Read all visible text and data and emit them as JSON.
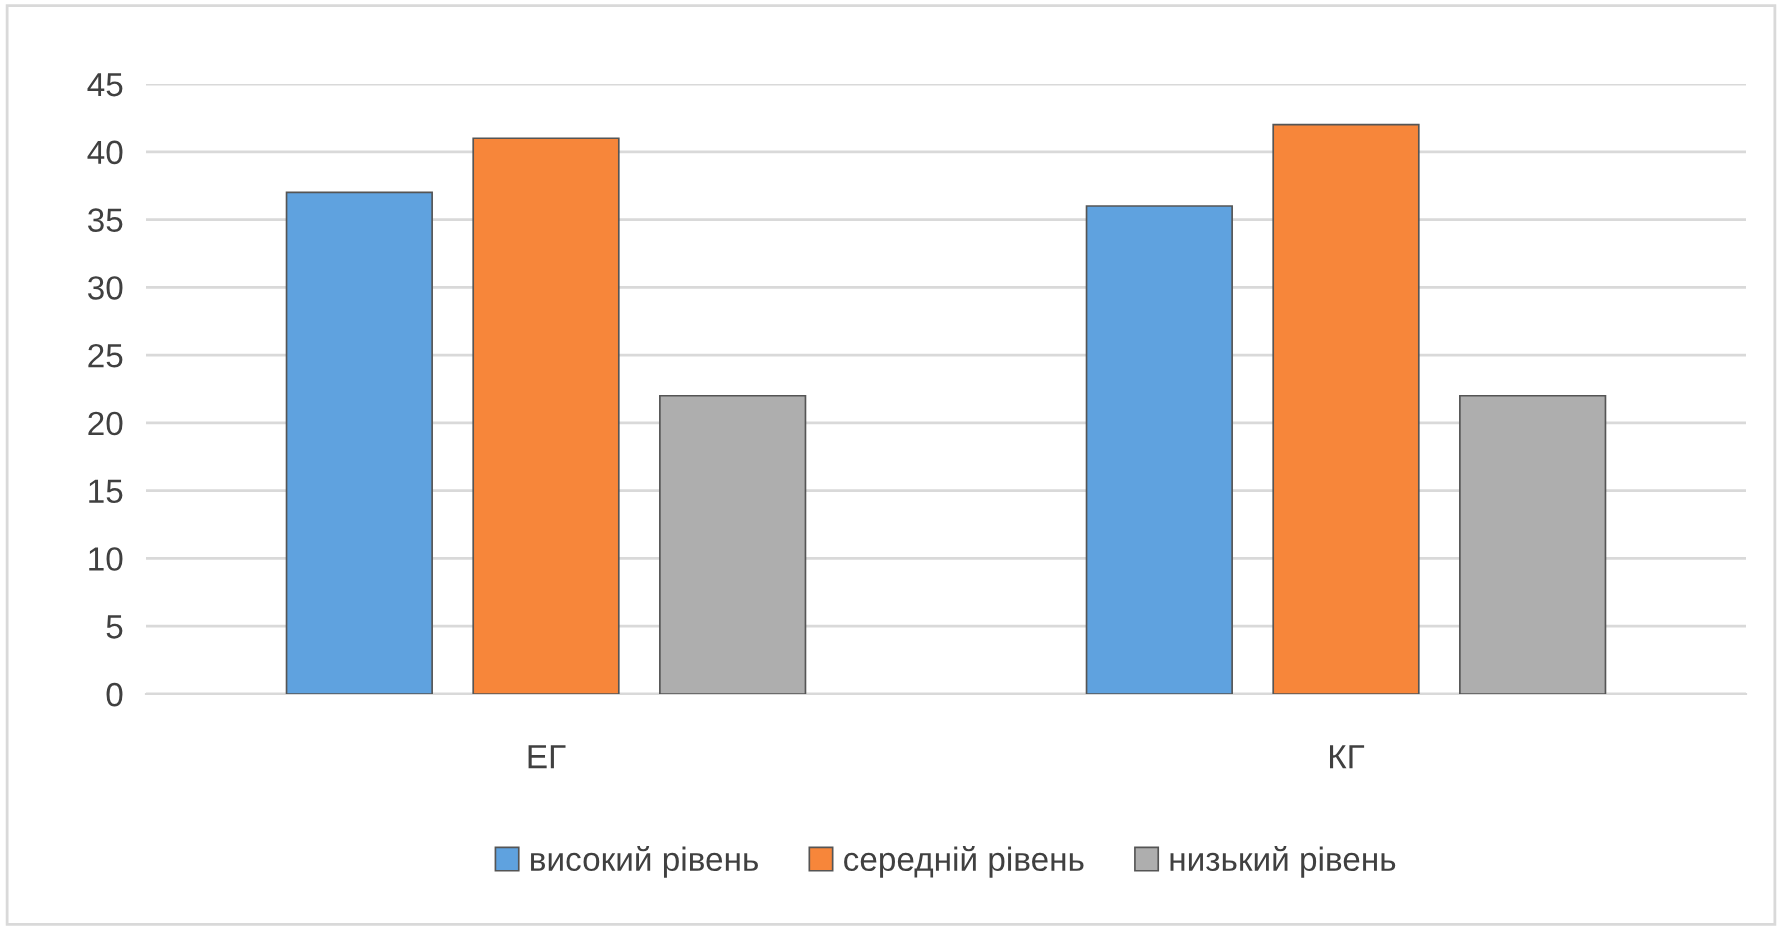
{
  "chart_data": {
    "type": "bar",
    "categories": [
      "ЕГ",
      "КГ"
    ],
    "series": [
      {
        "name": "високий рівень",
        "color": "#5fa2df",
        "values": [
          37,
          36
        ]
      },
      {
        "name": "середній рівень",
        "color": "#f7863a",
        "values": [
          41,
          42
        ]
      },
      {
        "name": "низький рівень",
        "color": "#aeaeae",
        "values": [
          22,
          22
        ]
      }
    ],
    "ylim": [
      0,
      45
    ],
    "yticks": [
      0,
      5,
      10,
      15,
      20,
      25,
      30,
      35,
      40,
      45
    ],
    "grid": "y",
    "legend": "bottom"
  }
}
